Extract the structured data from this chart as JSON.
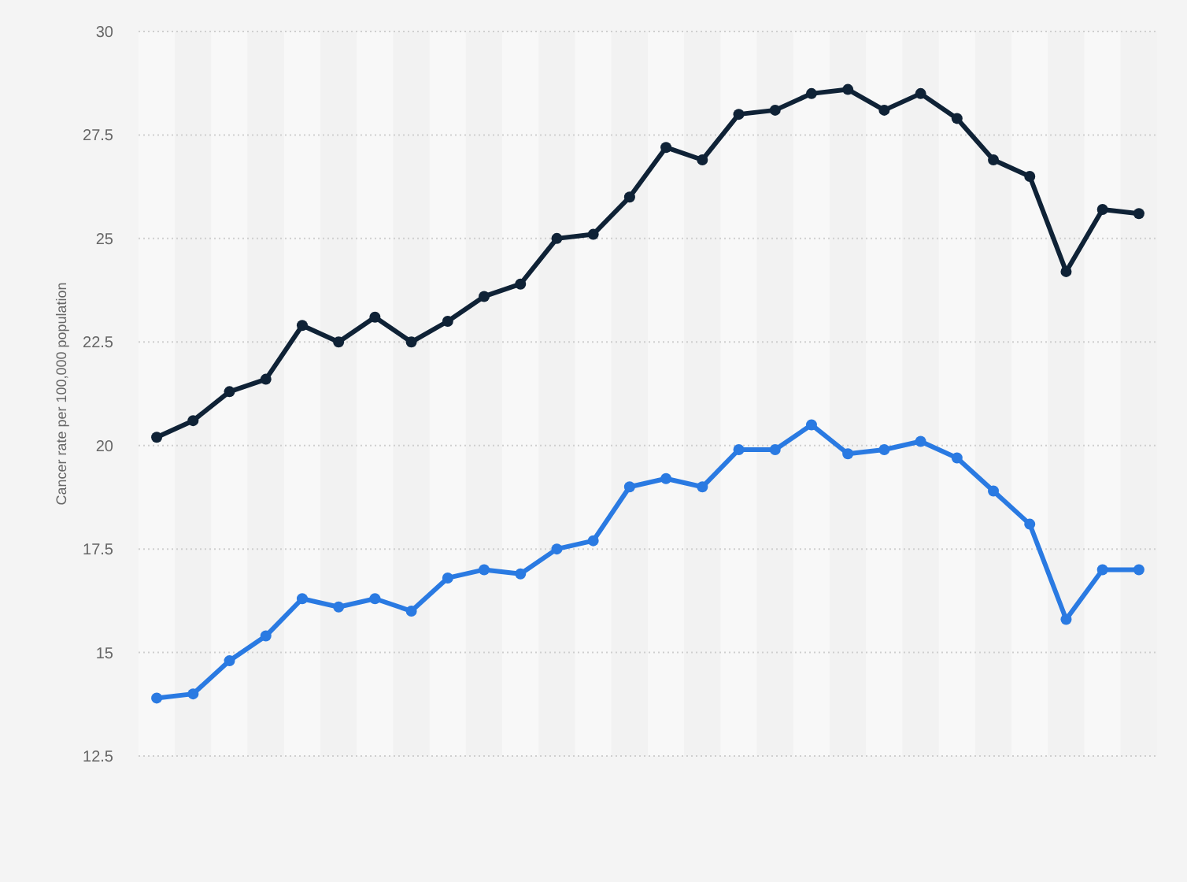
{
  "chart_data": {
    "type": "line",
    "ylabel": "Cancer rate per 100,000 population",
    "categories": [
      null,
      null,
      null,
      null,
      null,
      null,
      null,
      null,
      null,
      null,
      null,
      null,
      null,
      null,
      null,
      null,
      null,
      null,
      null,
      null,
      null,
      null,
      null,
      null,
      null,
      null,
      null,
      null
    ],
    "series": [
      {
        "color": "#0f2236",
        "values": [
          20.2,
          20.6,
          21.3,
          21.6,
          22.9,
          22.5,
          23.1,
          22.5,
          23.0,
          23.6,
          23.9,
          25.0,
          25.1,
          26.0,
          27.2,
          26.9,
          28.0,
          28.1,
          28.5,
          28.6,
          28.1,
          28.5,
          27.9,
          26.9,
          26.5,
          24.2,
          25.7,
          25.6
        ]
      },
      {
        "color": "#2a7ae2",
        "values": [
          13.9,
          14.0,
          14.8,
          15.4,
          16.3,
          16.1,
          16.3,
          16.0,
          16.8,
          17.0,
          16.9,
          17.5,
          17.7,
          19.0,
          19.2,
          19.0,
          19.9,
          19.9,
          20.5,
          19.8,
          19.9,
          20.1,
          19.7,
          18.9,
          18.1,
          15.8,
          17.0,
          17.0
        ]
      }
    ],
    "ylim": [
      12.5,
      30
    ],
    "yticks": [
      12.5,
      15,
      17.5,
      20,
      22.5,
      25,
      27.5,
      30
    ],
    "grid": "y",
    "marker": "circle",
    "line_style": "solid"
  }
}
